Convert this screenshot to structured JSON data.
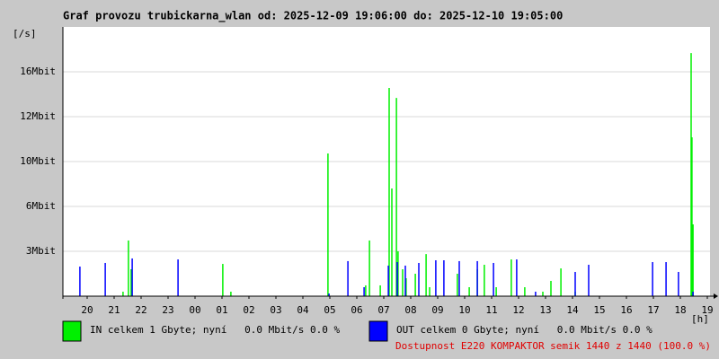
{
  "chart_data": {
    "type": "spikes",
    "title": "Graf provozu trubickarna_wlan od: 2025-12-09 19:06:00 do: 2025-12-10 19:05:00",
    "ylabel": "[/s]",
    "xlabel": "[h]",
    "xlim": [
      0,
      24
    ],
    "xticks": [
      {
        "value": 0.9,
        "label": "20"
      },
      {
        "value": 1.9,
        "label": "21"
      },
      {
        "value": 2.9,
        "label": "22"
      },
      {
        "value": 3.9,
        "label": "23"
      },
      {
        "value": 4.9,
        "label": "00"
      },
      {
        "value": 5.9,
        "label": "01"
      },
      {
        "value": 6.9,
        "label": "02"
      },
      {
        "value": 7.9,
        "label": "03"
      },
      {
        "value": 8.9,
        "label": "04"
      },
      {
        "value": 9.9,
        "label": "05"
      },
      {
        "value": 10.9,
        "label": "06"
      },
      {
        "value": 11.9,
        "label": "07"
      },
      {
        "value": 12.9,
        "label": "08"
      },
      {
        "value": 13.9,
        "label": "09"
      },
      {
        "value": 14.9,
        "label": "10"
      },
      {
        "value": 15.9,
        "label": "11"
      },
      {
        "value": 16.9,
        "label": "12"
      },
      {
        "value": 17.9,
        "label": "13"
      },
      {
        "value": 18.9,
        "label": "14"
      },
      {
        "value": 19.9,
        "label": "15"
      },
      {
        "value": 20.9,
        "label": "16"
      },
      {
        "value": 21.9,
        "label": "17"
      },
      {
        "value": 22.9,
        "label": "18"
      },
      {
        "value": 23.9,
        "label": "19"
      }
    ],
    "ylim": [
      0,
      19.2
    ],
    "yticks": [
      {
        "value": 3.2,
        "label": "3Mbit"
      },
      {
        "value": 6.4,
        "label": "6Mbit"
      },
      {
        "value": 9.6,
        "label": "10Mbit"
      },
      {
        "value": 12.8,
        "label": "12Mbit"
      },
      {
        "value": 16,
        "label": "16Mbit"
      }
    ],
    "grid": true,
    "series": [
      {
        "name": "IN celkem 1 Gbyte; nyní   0.0 Mbit/s 0.0 %",
        "color": "#00f000",
        "x": [
          2.23,
          2.43,
          2.53,
          5.93,
          6.23,
          9.83,
          11.23,
          11.37,
          11.77,
          12.1,
          12.2,
          12.37,
          12.43,
          12.6,
          12.73,
          13.07,
          13.47,
          13.6,
          14.63,
          15.07,
          15.37,
          15.63,
          16.07,
          16.63,
          17.13,
          17.8,
          18.1,
          18.47,
          19.0,
          23.3,
          23.33,
          23.37
        ],
        "values": [
          0.32,
          3.97,
          1.92,
          2.3,
          0.32,
          10.18,
          0.77,
          3.97,
          0.77,
          14.85,
          7.68,
          14.14,
          3.2,
          1.92,
          1.28,
          1.6,
          3.0,
          0.64,
          1.6,
          0.64,
          1.92,
          2.24,
          0.64,
          2.62,
          0.64,
          0.32,
          1.09,
          1.98,
          0.32,
          17.34,
          11.33,
          5.12
        ]
      },
      {
        "name": "OUT celkem 0 Gbyte; nyní   0.0 Mbit/s 0.0 %",
        "color": "#0000ff",
        "x": [
          0.63,
          1.57,
          2.57,
          4.27,
          9.87,
          10.57,
          11.17,
          12.07,
          12.4,
          12.7,
          13.2,
          13.83,
          14.13,
          14.7,
          15.37,
          15.97,
          16.83,
          17.53,
          19.0,
          19.5,
          21.87,
          22.37,
          22.83,
          23.37
        ],
        "values": [
          2.11,
          2.37,
          2.69,
          2.62,
          0.19,
          2.5,
          0.64,
          2.18,
          2.43,
          2.18,
          2.37,
          2.56,
          2.56,
          2.5,
          2.5,
          2.37,
          2.62,
          0.32,
          1.73,
          2.24,
          2.43,
          2.43,
          1.73,
          0.32
        ]
      }
    ],
    "annotation": "Dostupnost E220 KOMPAKTOR semik 1440 z 1440 (100.0 %)"
  }
}
